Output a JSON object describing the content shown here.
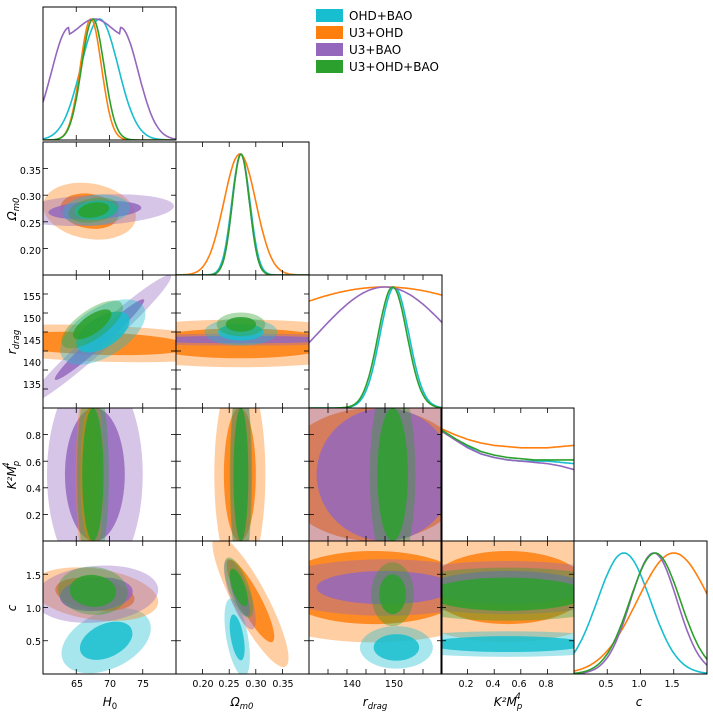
{
  "chart_data": {
    "type": "corner",
    "parameters": [
      {
        "key": "H0",
        "label": "H",
        "sub": "0",
        "range": [
          60,
          80
        ],
        "ticks": [
          65,
          70,
          75
        ]
      },
      {
        "key": "Om",
        "label": "Ω",
        "sub": "m0",
        "range": [
          0.15,
          0.4
        ],
        "ticks": [
          0.2,
          0.25,
          0.3,
          0.35
        ]
      },
      {
        "key": "rd",
        "label": "r",
        "sub": "drag",
        "range": [
          125,
          160
        ],
        "ticks": [
          130,
          135,
          140,
          145,
          150,
          155
        ]
      },
      {
        "key": "K",
        "label": "K²M",
        "sub": "p",
        "sup": "4",
        "range": [
          0,
          1
        ],
        "ticks": [
          0.2,
          0.4,
          0.6,
          0.8
        ]
      },
      {
        "key": "c",
        "label": "c",
        "sub": "",
        "range": [
          0,
          2
        ],
        "ticks": [
          0.5,
          1.0,
          1.5
        ]
      }
    ],
    "legend": {
      "position": "top-right",
      "entries": [
        {
          "name": "OHD+BAO",
          "color": "#17becf"
        },
        {
          "name": "U3+OHD",
          "color": "#ff7f0e"
        },
        {
          "name": "U3+BAO",
          "color": "#9467bd"
        },
        {
          "name": "U3+OHD+BAO",
          "color": "#2ca02c"
        }
      ]
    },
    "tick_labels": {
      "H0": [
        "65",
        "70",
        "75"
      ],
      "Om_x": [
        "0.20",
        "0.25",
        "0.30",
        "0.35"
      ],
      "Om_y": [
        "0.20",
        "0.25",
        "0.30",
        "0.35"
      ],
      "rd_x": [
        "140",
        "150"
      ],
      "rd_y": [
        "135",
        "140",
        "145",
        "150",
        "155"
      ],
      "K_x": [
        "0.2",
        "0.4",
        "0.6",
        "0.8"
      ],
      "K_y": [
        "0.2",
        "0.4",
        "0.6",
        "0.8"
      ],
      "c_x": [
        "0.5",
        "1.0",
        "1.5"
      ],
      "c_y": [
        "0.5",
        "1.0",
        "1.5"
      ]
    },
    "marginals": {
      "H0": [
        {
          "series": "OHD+BAO",
          "mean": 68.5,
          "sigma": 2.8
        },
        {
          "series": "U3+OHD",
          "mean": 67.2,
          "sigma": 1.6
        },
        {
          "series": "U3+BAO",
          "mean": 67.8,
          "sigma": 4.8,
          "flat": true
        },
        {
          "series": "U3+OHD+BAO",
          "mean": 67.5,
          "sigma": 1.7
        }
      ],
      "Om": [
        {
          "series": "OHD+BAO",
          "mean": 0.272,
          "sigma": 0.017
        },
        {
          "series": "U3+OHD",
          "mean": 0.27,
          "sigma": 0.03
        },
        {
          "series": "U3+BAO",
          "mean": 0.272,
          "sigma": 0.016
        },
        {
          "series": "U3+OHD+BAO",
          "mean": 0.272,
          "sigma": 0.016
        }
      ],
      "rd": [
        {
          "series": "OHD+BAO",
          "mean": 147.5,
          "sigma": 3.8
        },
        {
          "series": "U3+OHD",
          "mean": 145,
          "sigma": 40
        },
        {
          "series": "U3+BAO",
          "mean": 145,
          "sigma": 18
        },
        {
          "series": "U3+OHD+BAO",
          "mean": 147.0,
          "sigma": 3.8
        }
      ],
      "K": [
        {
          "series": "OHD+BAO",
          "y": [
            0.92,
            0.85,
            0.78,
            0.72,
            0.69,
            0.67,
            0.66,
            0.66,
            0.66,
            0.65,
            0.64
          ]
        },
        {
          "series": "U3+OHD",
          "y": [
            0.93,
            0.88,
            0.84,
            0.81,
            0.79,
            0.78,
            0.77,
            0.77,
            0.77,
            0.78,
            0.79
          ]
        },
        {
          "series": "U3+BAO",
          "y": [
            0.91,
            0.84,
            0.77,
            0.72,
            0.69,
            0.67,
            0.66,
            0.65,
            0.64,
            0.62,
            0.59
          ]
        },
        {
          "series": "U3+OHD+BAO",
          "y": [
            0.92,
            0.85,
            0.79,
            0.74,
            0.71,
            0.69,
            0.68,
            0.67,
            0.67,
            0.67,
            0.67
          ]
        }
      ],
      "c": [
        {
          "series": "OHD+BAO",
          "mean": 0.75,
          "sigma": 0.4
        },
        {
          "series": "U3+OHD",
          "mean": 1.5,
          "sigma": 0.55
        },
        {
          "series": "U3+BAO",
          "mean": 1.2,
          "sigma": 0.35
        },
        {
          "series": "U3+OHD+BAO",
          "mean": 1.22,
          "sigma": 0.38
        }
      ]
    }
  }
}
